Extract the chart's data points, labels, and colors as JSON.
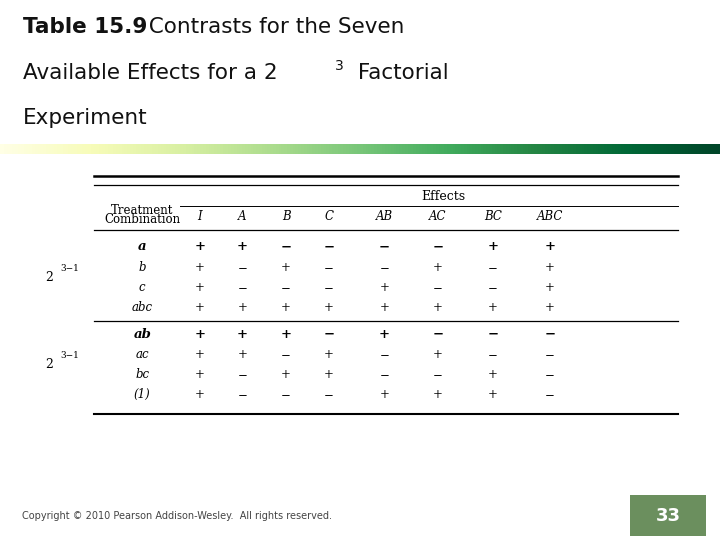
{
  "title_bold": "Table 15.9",
  "title_normal": "  Contrasts for the Seven",
  "title_line2": "Available Effects for a 2",
  "title_sup": "3",
  "title_line2b": " Factorial",
  "title_line3": "Experiment",
  "bg_color": "#ffffff",
  "title_color": "#111111",
  "title_area_bg": "#ffffff",
  "green_bar_color1": "#d8e8c0",
  "green_bar_color2": "#a8c880",
  "image_area_color": "#c8a050",
  "treatment_combinations": [
    "a",
    "b",
    "c",
    "abc",
    "ab",
    "ac",
    "bc",
    "(1)"
  ],
  "signs": [
    [
      "+",
      "+",
      "−",
      "−",
      "−",
      "−",
      "+",
      "+"
    ],
    [
      "+",
      "−",
      "+",
      "−",
      "−",
      "+",
      "−",
      "+"
    ],
    [
      "+",
      "−",
      "−",
      "−",
      "+",
      "−",
      "−",
      "+"
    ],
    [
      "+",
      "+",
      "+",
      "+",
      "+",
      "+",
      "+",
      "+"
    ],
    [
      "+",
      "+",
      "+",
      "−",
      "+",
      "−",
      "−",
      "−"
    ],
    [
      "+",
      "+",
      "−",
      "+",
      "−",
      "+",
      "−",
      "−"
    ],
    [
      "+",
      "−",
      "+",
      "+",
      "−",
      "−",
      "+",
      "−"
    ],
    [
      "+",
      "−",
      "−",
      "−",
      "+",
      "+",
      "+",
      "−"
    ]
  ],
  "bold_rows": [
    0,
    4
  ],
  "copyright": "Copyright © 2010 Pearson Addison-Wesley.  All rights reserved.",
  "page_num": "33",
  "page_num_bg": "#6b8f5e"
}
